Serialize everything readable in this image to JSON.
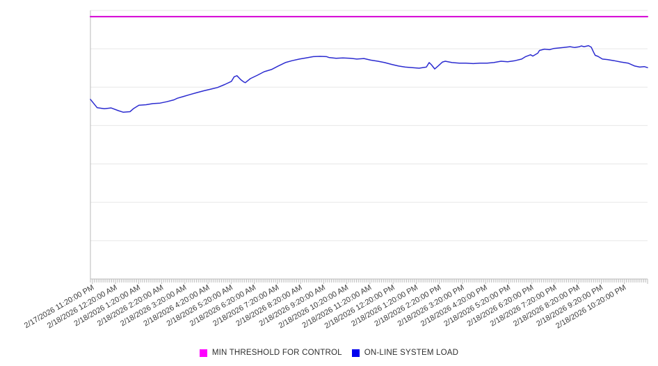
{
  "figure": {
    "background_color": "#ffffff",
    "grid_color": "#e7e7e7",
    "axis_color": "#b9b9b9",
    "tick_color": "#bbbbbb",
    "label_color": "#3b3b3b"
  },
  "legend": {
    "items": [
      {
        "label": "MIN THRESHOLD FOR CONTROL",
        "swatch_color": "#ff00ff"
      },
      {
        "label": "ON-LINE SYSTEM LOAD",
        "swatch_color": "#0000ee"
      }
    ]
  },
  "chart_data": {
    "type": "line",
    "title": "",
    "xlabel": "",
    "ylabel": "",
    "grid": {
      "horizontal_gridlines": 8,
      "vertical_gridlines": 0,
      "legend_position": "bottom-center"
    },
    "y_axis": {
      "tick_labels_visible": false,
      "ylim": [
        0,
        100
      ],
      "unit": "percent of plot height (no y-axis labels shown in chart)"
    },
    "x_axis": {
      "tick_labels": [
        "2/17/2026 11:20:00 PM",
        "2/18/2026 12:20:00 AM",
        "2/18/2026 1:20:00 AM",
        "2/18/2026 2:20:00 AM",
        "2/18/2026 3:20:00 AM",
        "2/18/2026 4:20:00 AM",
        "2/18/2026 5:20:00 AM",
        "2/18/2026 6:20:00 AM",
        "2/18/2026 7:20:00 AM",
        "2/18/2026 8:20:00 AM",
        "2/18/2026 9:20:00 AM",
        "2/18/2026 10:20:00 AM",
        "2/18/2026 11:20:00 AM",
        "2/18/2026 12:20:00 PM",
        "2/18/2026 1:20:00 PM",
        "2/18/2026 2:20:00 PM",
        "2/18/2026 3:20:00 PM",
        "2/18/2026 4:20:00 PM",
        "2/18/2026 5:20:00 PM",
        "2/18/2026 6:20:00 PM",
        "2/18/2026 7:20:00 PM",
        "2/18/2026 8:20:00 PM",
        "2/18/2026 9:20:00 PM",
        "2/18/2026 10:20:00 PM"
      ],
      "label_rotation_deg": -30,
      "time_range_minutes": 1445,
      "first_label_offset_minutes": 5,
      "label_interval_minutes": 60,
      "minor_tick_interval_minutes": 5
    },
    "series": [
      {
        "name": "MIN THRESHOLD FOR CONTROL",
        "color": "#d400d4",
        "stroke_width": 2,
        "constant_value": 97.7
      },
      {
        "name": "ON-LINE SYSTEM LOAD",
        "color": "#2b2bd0",
        "stroke_width": 1.5,
        "points": [
          [
            0.0,
            66.9
          ],
          [
            0.012,
            63.8
          ],
          [
            0.025,
            63.4
          ],
          [
            0.037,
            63.7
          ],
          [
            0.05,
            62.7
          ],
          [
            0.059,
            62.1
          ],
          [
            0.071,
            62.3
          ],
          [
            0.077,
            63.4
          ],
          [
            0.087,
            64.7
          ],
          [
            0.1,
            64.9
          ],
          [
            0.112,
            65.3
          ],
          [
            0.125,
            65.5
          ],
          [
            0.137,
            66.0
          ],
          [
            0.15,
            66.7
          ],
          [
            0.156,
            67.3
          ],
          [
            0.166,
            67.9
          ],
          [
            0.179,
            68.7
          ],
          [
            0.191,
            69.4
          ],
          [
            0.204,
            70.1
          ],
          [
            0.216,
            70.7
          ],
          [
            0.228,
            71.3
          ],
          [
            0.241,
            72.4
          ],
          [
            0.253,
            73.6
          ],
          [
            0.258,
            75.3
          ],
          [
            0.263,
            75.7
          ],
          [
            0.27,
            74.2
          ],
          [
            0.275,
            73.4
          ],
          [
            0.278,
            73.1
          ],
          [
            0.287,
            74.6
          ],
          [
            0.3,
            75.9
          ],
          [
            0.312,
            77.2
          ],
          [
            0.325,
            78.0
          ],
          [
            0.337,
            79.3
          ],
          [
            0.35,
            80.6
          ],
          [
            0.362,
            81.3
          ],
          [
            0.375,
            81.9
          ],
          [
            0.387,
            82.3
          ],
          [
            0.4,
            82.8
          ],
          [
            0.412,
            82.9
          ],
          [
            0.424,
            82.8
          ],
          [
            0.428,
            82.5
          ],
          [
            0.441,
            82.2
          ],
          [
            0.453,
            82.3
          ],
          [
            0.466,
            82.2
          ],
          [
            0.478,
            81.9
          ],
          [
            0.491,
            82.1
          ],
          [
            0.503,
            81.5
          ],
          [
            0.516,
            81.1
          ],
          [
            0.528,
            80.6
          ],
          [
            0.541,
            79.9
          ],
          [
            0.553,
            79.3
          ],
          [
            0.565,
            78.9
          ],
          [
            0.578,
            78.7
          ],
          [
            0.59,
            78.5
          ],
          [
            0.603,
            78.9
          ],
          [
            0.608,
            80.6
          ],
          [
            0.612,
            79.8
          ],
          [
            0.618,
            78.2
          ],
          [
            0.624,
            79.3
          ],
          [
            0.632,
            80.8
          ],
          [
            0.637,
            81.1
          ],
          [
            0.649,
            80.6
          ],
          [
            0.662,
            80.4
          ],
          [
            0.674,
            80.4
          ],
          [
            0.687,
            80.2
          ],
          [
            0.699,
            80.4
          ],
          [
            0.712,
            80.4
          ],
          [
            0.724,
            80.6
          ],
          [
            0.737,
            81.1
          ],
          [
            0.749,
            80.9
          ],
          [
            0.762,
            81.3
          ],
          [
            0.774,
            81.9
          ],
          [
            0.781,
            82.8
          ],
          [
            0.79,
            83.5
          ],
          [
            0.794,
            83.0
          ],
          [
            0.803,
            84.1
          ],
          [
            0.806,
            85.1
          ],
          [
            0.815,
            85.6
          ],
          [
            0.824,
            85.4
          ],
          [
            0.831,
            85.8
          ],
          [
            0.84,
            86.0
          ],
          [
            0.849,
            86.2
          ],
          [
            0.861,
            86.5
          ],
          [
            0.869,
            86.2
          ],
          [
            0.878,
            86.5
          ],
          [
            0.881,
            86.8
          ],
          [
            0.886,
            86.5
          ],
          [
            0.894,
            86.9
          ],
          [
            0.899,
            86.3
          ],
          [
            0.903,
            84.5
          ],
          [
            0.906,
            83.3
          ],
          [
            0.911,
            82.9
          ],
          [
            0.919,
            81.9
          ],
          [
            0.928,
            81.7
          ],
          [
            0.94,
            81.3
          ],
          [
            0.952,
            80.8
          ],
          [
            0.965,
            80.4
          ],
          [
            0.977,
            79.3
          ],
          [
            0.986,
            78.9
          ],
          [
            0.994,
            79.1
          ],
          [
            1.0,
            78.7
          ]
        ]
      }
    ]
  }
}
